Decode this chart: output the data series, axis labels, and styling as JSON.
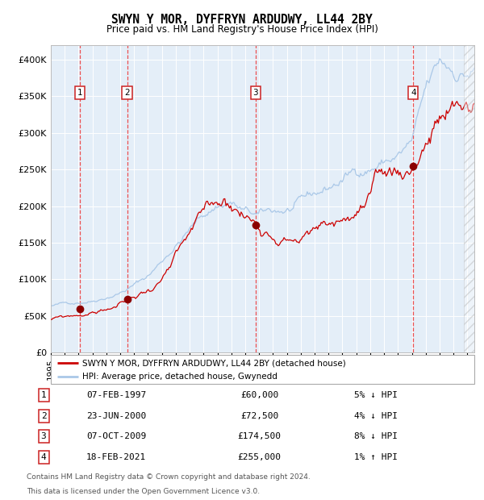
{
  "title": "SWYN Y MOR, DYFFRYN ARDUDWY, LL44 2BY",
  "subtitle": "Price paid vs. HM Land Registry's House Price Index (HPI)",
  "legend_line1": "SWYN Y MOR, DYFFRYN ARDUDWY, LL44 2BY (detached house)",
  "legend_line2": "HPI: Average price, detached house, Gwynedd",
  "footer1": "Contains HM Land Registry data © Crown copyright and database right 2024.",
  "footer2": "This data is licensed under the Open Government Licence v3.0.",
  "transactions": [
    {
      "num": "1",
      "date": "07-FEB-1997",
      "price": 60000,
      "pct": "5%",
      "dir": "↓",
      "year_x": 1997.1
    },
    {
      "num": "2",
      "date": "23-JUN-2000",
      "price": 72500,
      "pct": "4%",
      "dir": "↓",
      "year_x": 2000.5
    },
    {
      "num": "3",
      "date": "07-OCT-2009",
      "price": 174500,
      "pct": "8%",
      "dir": "↓",
      "year_x": 2009.75
    },
    {
      "num": "4",
      "date": "18-FEB-2021",
      "price": 255000,
      "pct": "1%",
      "dir": "↑",
      "year_x": 2021.1
    }
  ],
  "hpi_color": "#aac8e8",
  "price_color": "#cc0000",
  "dot_color": "#8b0000",
  "vline_color": "#ee3333",
  "plot_bg": "#e4eef8",
  "ylim": [
    0,
    420000
  ],
  "xlim_start": 1995.0,
  "xlim_end": 2025.5,
  "yticks": [
    0,
    50000,
    100000,
    150000,
    200000,
    250000,
    300000,
    350000,
    400000
  ]
}
